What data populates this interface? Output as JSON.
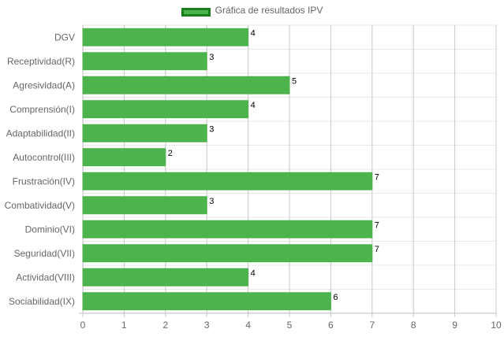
{
  "chart_data": {
    "type": "bar",
    "orientation": "horizontal",
    "legend": {
      "label": "Gráfica de resultados IPV",
      "position": "top"
    },
    "colors": {
      "bar_fill": "#4db34d",
      "bar_border": "#1a7f1a",
      "grid": "#c8c8c8",
      "tick_text": "#666666",
      "value_text": "#000000"
    },
    "categories": [
      "DGV",
      "Receptividad(R)",
      "Agresividad(A)",
      "Comprensión(I)",
      "Adaptabilidad(II)",
      "Autocontrol(III)",
      "Frustración(IV)",
      "Combatividad(V)",
      "Dominio(VI)",
      "Seguridad(VII)",
      "Actividad(VIII)",
      "Sociabilidad(IX)"
    ],
    "series": [
      {
        "name": "Gráfica de resultados IPV",
        "values": [
          4,
          3,
          5,
          4,
          3,
          2,
          7,
          3,
          7,
          7,
          4,
          6
        ]
      }
    ],
    "xlim": [
      0,
      10
    ],
    "xticks": [
      0,
      1,
      2,
      3,
      4,
      5,
      6,
      7,
      8,
      9,
      10
    ],
    "grid": true,
    "xlabel": "",
    "ylabel": ""
  }
}
